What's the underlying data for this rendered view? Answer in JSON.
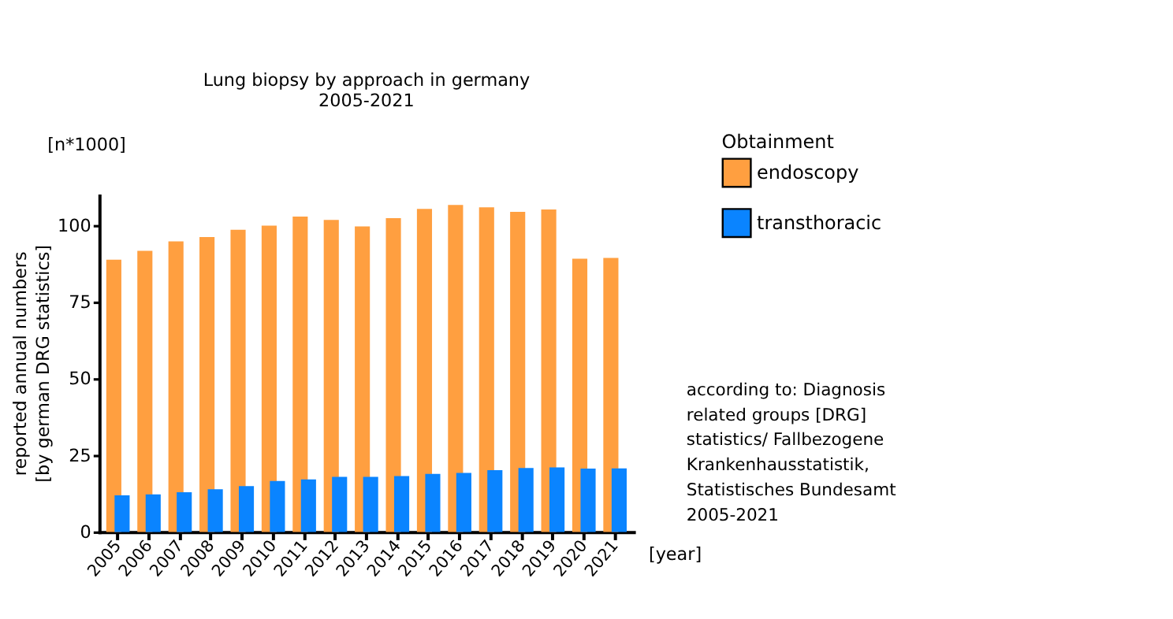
{
  "chart_data": {
    "type": "bar",
    "title": "Lung biopsy by approach in germany",
    "subtitle": "2005-2021",
    "xlabel": "[year]",
    "ylabel": "reported annual numbers [by german DRG statistics]",
    "categories": [
      "2005",
      "2006",
      "2007",
      "2008",
      "2009",
      "2010",
      "2011",
      "2012",
      "2013",
      "2014",
      "2015",
      "2016",
      "2017",
      "2018",
      "2019",
      "2020",
      "2021"
    ],
    "series": [
      {
        "name": "endoscopy",
        "color": "#ff9f40",
        "values": [
          89.0,
          91.9,
          95.0,
          96.4,
          98.8,
          100.1,
          103.1,
          102.0,
          99.9,
          102.6,
          105.6,
          106.9,
          106.1,
          104.6,
          105.4,
          89.3,
          89.6
        ]
      },
      {
        "name": "transthoracic",
        "color": "#0a84ff",
        "values": [
          12.0,
          12.3,
          13.0,
          14.0,
          15.0,
          16.7,
          17.2,
          18.0,
          18.0,
          18.3,
          19.0,
          19.3,
          20.2,
          20.9,
          21.1,
          20.7,
          20.8
        ]
      }
    ],
    "ylim": [
      0,
      110
    ],
    "yticks": [
      0,
      25,
      50,
      75,
      100
    ],
    "grid": false,
    "legend": "top right",
    "legend_title": "Obtainment",
    "annotations": [
      "[n*1000]",
      "according to: Diagnosis related groups [DRG] statistics/ Fallbezogene Krankenhausstatistik, Statistisches Bundesamt 2005-2021"
    ]
  }
}
